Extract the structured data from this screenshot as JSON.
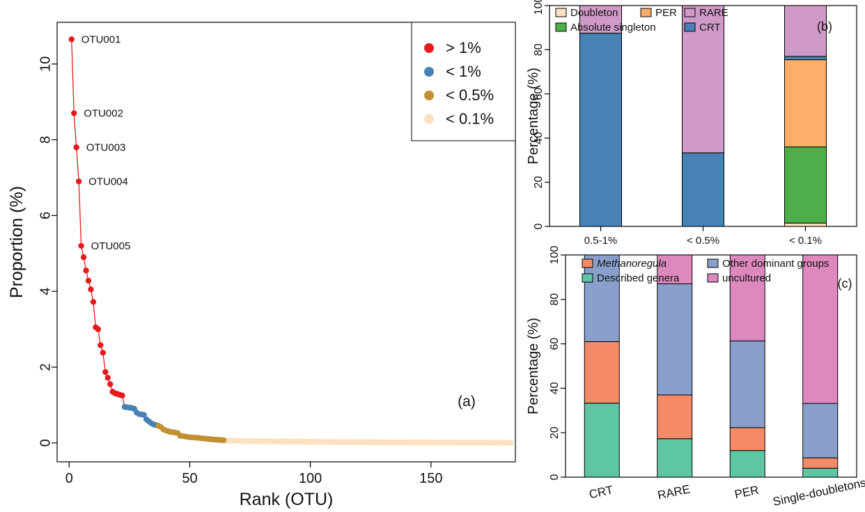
{
  "chart_data": [
    {
      "type": "scatter",
      "panel_label": "(a)",
      "xlabel": "Rank (OTU)",
      "ylabel": "Proportion (%)",
      "xlim": [
        -5,
        185
      ],
      "ylim": [
        -0.5,
        11.1
      ],
      "xticks": [
        0,
        50,
        100,
        150
      ],
      "yticks": [
        0,
        2,
        4,
        6,
        8,
        10
      ],
      "grid": false,
      "legend_position": "top-right",
      "legend": [
        {
          "label": "> 1%",
          "color": "#e41a1c"
        },
        {
          "label": "< 1%",
          "color": "#4682b4"
        },
        {
          "label": "< 0.5%",
          "color": "#c09032"
        },
        {
          "label": "< 0.1%",
          "color": "#fde0c0"
        }
      ],
      "annotations": [
        {
          "text": "OTU001",
          "x": 1,
          "y": 10.65
        },
        {
          "text": "OTU002",
          "x": 2,
          "y": 8.7
        },
        {
          "text": "OTU003",
          "x": 3,
          "y": 7.8
        },
        {
          "text": "OTU004",
          "x": 4,
          "y": 6.9
        },
        {
          "text": "OTU005",
          "x": 5,
          "y": 5.2
        }
      ],
      "series": [
        {
          "name": "> 1%",
          "color": "#e41a1c",
          "x": [
            1,
            2,
            3,
            4,
            5,
            6,
            7,
            8,
            9,
            10,
            11,
            12,
            13,
            14,
            15,
            16,
            17,
            18,
            19,
            20,
            21,
            22
          ],
          "y": [
            10.65,
            8.7,
            7.8,
            6.9,
            5.2,
            4.9,
            4.55,
            4.28,
            4.05,
            3.72,
            3.05,
            3.0,
            2.58,
            2.38,
            1.87,
            1.72,
            1.55,
            1.35,
            1.31,
            1.29,
            1.27,
            1.25
          ]
        },
        {
          "name": "< 1%",
          "color": "#4682b4",
          "x": [
            23,
            24,
            25,
            26,
            27,
            28,
            29,
            30,
            31,
            32,
            33,
            34,
            35,
            36
          ],
          "y": [
            0.95,
            0.94,
            0.93,
            0.92,
            0.9,
            0.8,
            0.76,
            0.75,
            0.74,
            0.62,
            0.57,
            0.52,
            0.49,
            0.47
          ]
        },
        {
          "name": "< 0.5%",
          "color": "#c09032",
          "x": [
            37,
            38,
            39,
            40,
            41,
            42,
            43,
            44,
            45,
            46,
            47,
            48,
            49,
            50,
            51,
            52,
            53,
            54,
            55,
            56,
            57,
            58,
            59,
            60,
            61,
            62,
            63,
            64
          ],
          "y": [
            0.45,
            0.42,
            0.36,
            0.33,
            0.31,
            0.29,
            0.28,
            0.27,
            0.26,
            0.19,
            0.18,
            0.17,
            0.16,
            0.15,
            0.145,
            0.14,
            0.135,
            0.13,
            0.12,
            0.115,
            0.11,
            0.1,
            0.095,
            0.09,
            0.085,
            0.08,
            0.075,
            0.07
          ]
        },
        {
          "name": "< 0.1%",
          "color": "#fde0c0",
          "x_range": [
            65,
            183
          ],
          "y_start": 0.06,
          "y_end": 0.005
        }
      ]
    },
    {
      "type": "bar",
      "stacked": true,
      "panel_label": "(b)",
      "ylabel": "Percentage (%)",
      "xlabel": "",
      "ylim": [
        0,
        100
      ],
      "yticks": [
        0,
        20,
        40,
        60,
        80,
        100
      ],
      "categories": [
        "0.5-1%",
        "< 0.5%",
        "< 0.1%"
      ],
      "legend": [
        "Doubleton",
        "PER",
        "RARE",
        "Absolute singleton",
        "CRT"
      ],
      "series": [
        {
          "name": "Doubleton",
          "color": "#fde0c0",
          "values": [
            0,
            0,
            1.5
          ]
        },
        {
          "name": "Absolute singleton",
          "color": "#4daf4a",
          "values": [
            0,
            0,
            34.5
          ]
        },
        {
          "name": "PER",
          "color": "#fdae6b",
          "values": [
            0,
            0,
            39.5
          ]
        },
        {
          "name": "CRT",
          "color": "#4682b4",
          "values": [
            87.5,
            33.3,
            1.5
          ]
        },
        {
          "name": "RARE",
          "color": "#d09ac8",
          "values": [
            12.5,
            66.7,
            23
          ]
        }
      ]
    },
    {
      "type": "bar",
      "stacked": true,
      "panel_label": "(c)",
      "ylabel": "Percentage (%)",
      "xlabel": "",
      "ylim": [
        0,
        100
      ],
      "yticks": [
        0,
        20,
        40,
        60,
        80,
        100
      ],
      "categories": [
        "CRT",
        "RARE",
        "PER",
        "Single-doubletons"
      ],
      "legend": [
        "Methanoregula",
        "Other dominant groups",
        "Described genera",
        "uncultured"
      ],
      "series": [
        {
          "name": "Described genera",
          "color": "#5fc6a4",
          "values": [
            33.3,
            17.3,
            12,
            4
          ]
        },
        {
          "name": "Methanoregula",
          "color": "#f48a68",
          "values": [
            27.7,
            19.7,
            10.3,
            4.7
          ]
        },
        {
          "name": "Other dominant groups",
          "color": "#8aa0cc",
          "values": [
            39,
            50,
            39,
            24.5
          ]
        },
        {
          "name": "uncultured",
          "color": "#dd89bd",
          "values": [
            0,
            13,
            38.7,
            66.8
          ]
        }
      ]
    }
  ]
}
